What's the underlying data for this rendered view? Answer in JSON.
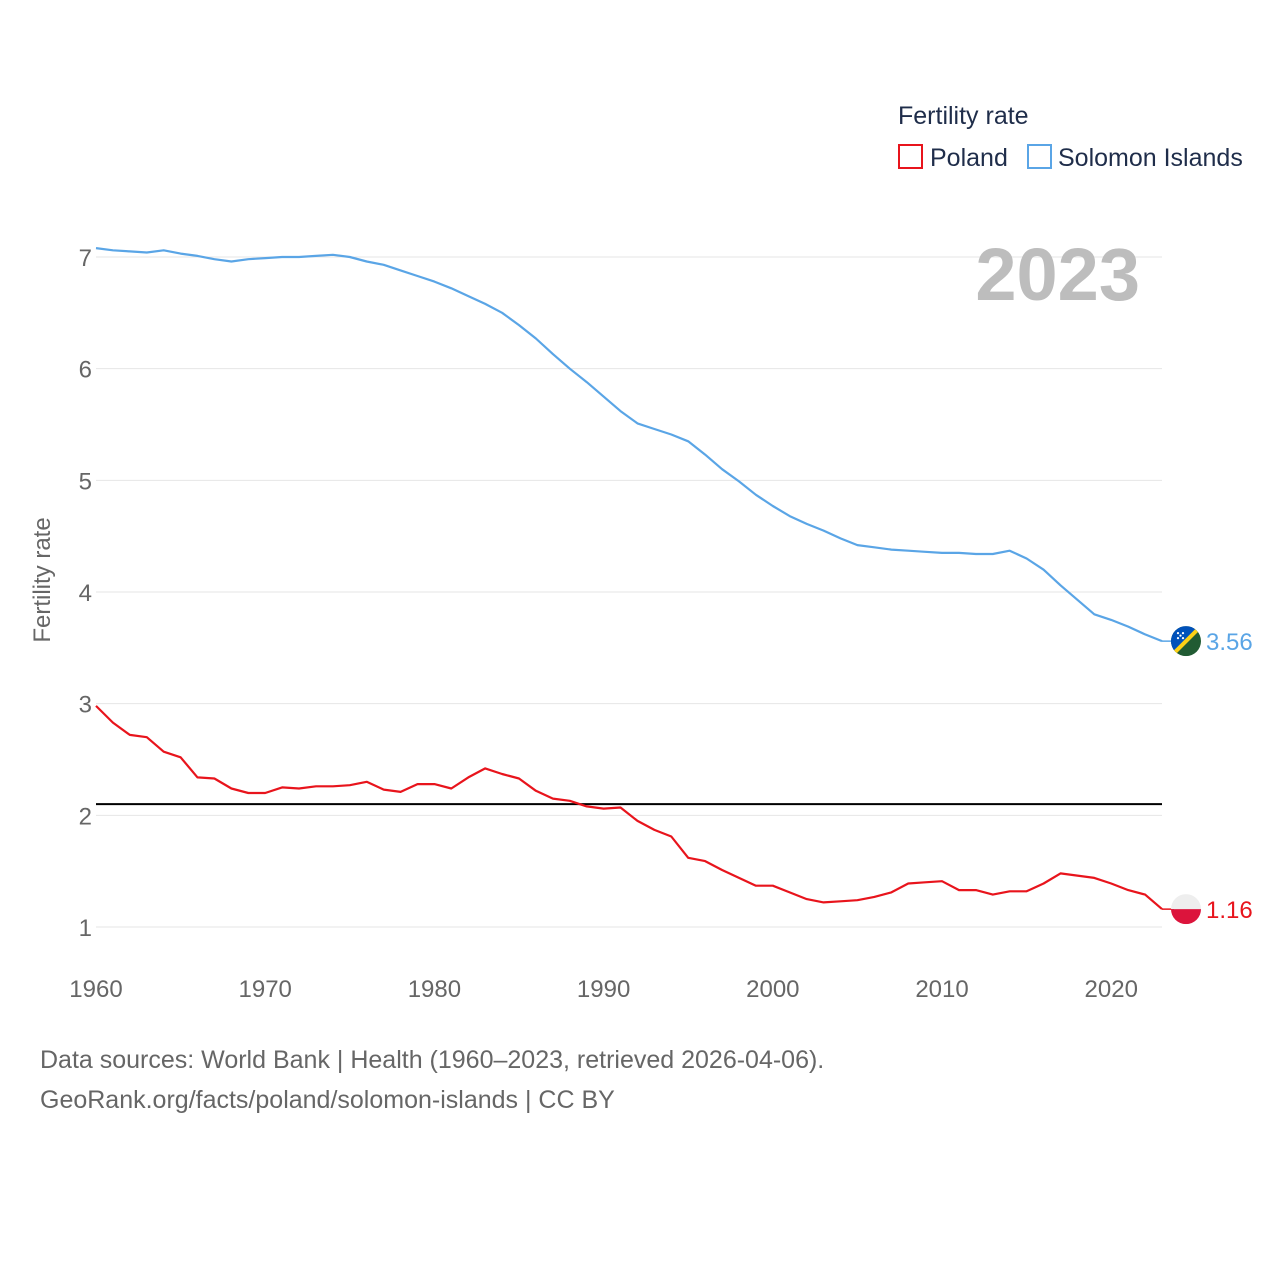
{
  "chart_data": {
    "type": "line",
    "ylabel": "Fertility rate",
    "xlabel": "",
    "xlim": [
      1960,
      2023
    ],
    "ylim": [
      0.6,
      7.2
    ],
    "yticks": [
      1,
      2,
      3,
      4,
      5,
      6,
      7
    ],
    "xticks": [
      1960,
      1970,
      1980,
      1990,
      2000,
      2010,
      2020
    ],
    "year_label": "2023",
    "legend": {
      "title": "Fertility rate",
      "position": "top-right"
    },
    "reference_line": {
      "y": 2.1,
      "color": "#000000"
    },
    "x": [
      1960,
      1961,
      1962,
      1963,
      1964,
      1965,
      1966,
      1967,
      1968,
      1969,
      1970,
      1971,
      1972,
      1973,
      1974,
      1975,
      1976,
      1977,
      1978,
      1979,
      1980,
      1981,
      1982,
      1983,
      1984,
      1985,
      1986,
      1987,
      1988,
      1989,
      1990,
      1991,
      1992,
      1993,
      1994,
      1995,
      1996,
      1997,
      1998,
      1999,
      2000,
      2001,
      2002,
      2003,
      2004,
      2005,
      2006,
      2007,
      2008,
      2009,
      2010,
      2011,
      2012,
      2013,
      2014,
      2015,
      2016,
      2017,
      2018,
      2019,
      2020,
      2021,
      2022,
      2023
    ],
    "series": [
      {
        "name": "Poland",
        "color": "#e8141c",
        "end_label": "1.16",
        "flag": "poland-flag-icon",
        "values": [
          2.98,
          2.83,
          2.72,
          2.7,
          2.57,
          2.52,
          2.34,
          2.33,
          2.24,
          2.2,
          2.2,
          2.25,
          2.24,
          2.26,
          2.26,
          2.27,
          2.3,
          2.23,
          2.21,
          2.28,
          2.28,
          2.24,
          2.34,
          2.42,
          2.37,
          2.33,
          2.22,
          2.15,
          2.13,
          2.08,
          2.06,
          2.07,
          1.95,
          1.87,
          1.81,
          1.62,
          1.59,
          1.51,
          1.44,
          1.37,
          1.37,
          1.31,
          1.25,
          1.22,
          1.23,
          1.24,
          1.27,
          1.31,
          1.39,
          1.4,
          1.41,
          1.33,
          1.33,
          1.29,
          1.32,
          1.32,
          1.39,
          1.48,
          1.46,
          1.44,
          1.39,
          1.33,
          1.29,
          1.16
        ]
      },
      {
        "name": "Solomon Islands",
        "color": "#5aa5e6",
        "end_label": "3.56",
        "flag": "solomon-islands-flag-icon",
        "values": [
          7.08,
          7.06,
          7.05,
          7.04,
          7.06,
          7.03,
          7.01,
          6.98,
          6.96,
          6.98,
          6.99,
          7.0,
          7.0,
          7.01,
          7.02,
          7.0,
          6.96,
          6.93,
          6.88,
          6.83,
          6.78,
          6.72,
          6.65,
          6.58,
          6.5,
          6.39,
          6.27,
          6.13,
          6.0,
          5.88,
          5.75,
          5.62,
          5.51,
          5.46,
          5.41,
          5.35,
          5.23,
          5.1,
          4.99,
          4.87,
          4.77,
          4.68,
          4.61,
          4.55,
          4.48,
          4.42,
          4.4,
          4.38,
          4.37,
          4.36,
          4.35,
          4.35,
          4.34,
          4.34,
          4.37,
          4.3,
          4.2,
          4.06,
          3.93,
          3.8,
          3.75,
          3.69,
          3.62,
          3.56
        ]
      }
    ]
  },
  "footer": {
    "line1": "Data sources: World Bank | Health (1960–2023, retrieved 2026-04-06).",
    "line2": "GeoRank.org/facts/poland/solomon-islands | CC BY"
  }
}
